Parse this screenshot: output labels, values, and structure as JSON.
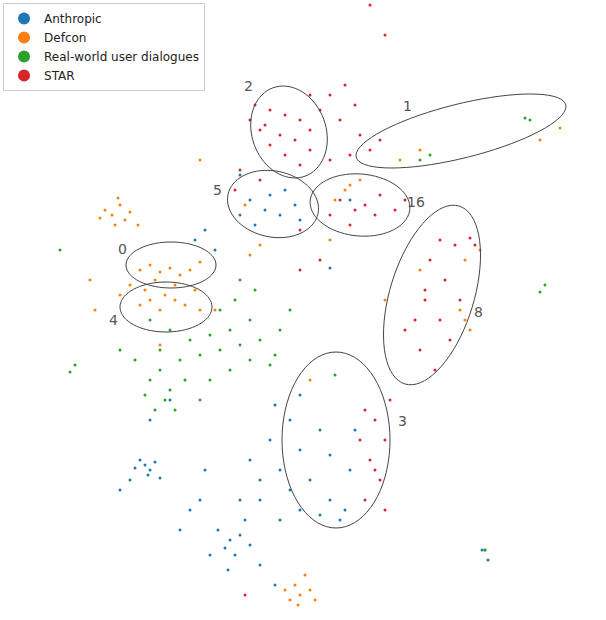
{
  "chart_data": {
    "type": "scatter",
    "xlim": [
      0,
      606
    ],
    "ylim": [
      0,
      620
    ],
    "tick_labels": false,
    "grid": false,
    "legend": "upper left",
    "marker": "circle",
    "series": [
      {
        "name": "Anthropic",
        "color": "#1f77b4",
        "x": [
          145,
          150,
          140,
          155,
          148,
          135,
          160,
          120,
          130,
          230,
          225,
          240,
          218,
          235,
          250,
          210,
          245,
          228,
          260,
          280,
          300,
          320,
          290,
          270,
          250,
          310,
          330,
          340,
          320,
          300,
          290,
          260,
          240,
          350,
          355,
          275,
          300,
          330,
          280,
          200,
          190,
          205,
          180,
          485,
          488,
          482,
          250,
          265,
          280,
          295,
          270,
          255,
          300,
          285,
          240,
          205,
          195,
          215,
          330,
          350,
          240,
          150,
          170,
          345,
          260,
          275
        ],
        "y": [
          155,
          150,
          160,
          158,
          145,
          152,
          142,
          130,
          140,
          80,
          72,
          85,
          90,
          65,
          75,
          65,
          100,
          50,
          120,
          150,
          170,
          190,
          200,
          180,
          160,
          140,
          120,
          100,
          105,
          110,
          130,
          140,
          120,
          150,
          190,
          215,
          225,
          165,
          100,
          120,
          110,
          150,
          90,
          70,
          60,
          70,
          420,
          410,
          405,
          415,
          425,
          395,
          400,
          430,
          405,
          390,
          380,
          370,
          352,
          420,
          445,
          200,
          220,
          110,
          55,
          35
        ]
      },
      {
        "name": "Defcon",
        "color": "#ff7f0e",
        "x": [
          105,
          112,
          120,
          125,
          115,
          130,
          100,
          138,
          118,
          140,
          150,
          160,
          170,
          180,
          190,
          200,
          155,
          145,
          165,
          175,
          185,
          150,
          160,
          140,
          200,
          130,
          120,
          175,
          195,
          295,
          300,
          290,
          305,
          310,
          298,
          285,
          315,
          345,
          350,
          360,
          335,
          465,
          470,
          460,
          465,
          480,
          560,
          540,
          420,
          400,
          330,
          260,
          250,
          215,
          95,
          90,
          310,
          160,
          200,
          245,
          420,
          385
        ],
        "y": [
          410,
          405,
          415,
          400,
          395,
          408,
          402,
          395,
          422,
          350,
          355,
          348,
          352,
          345,
          350,
          358,
          340,
          330,
          325,
          320,
          315,
          320,
          310,
          315,
          310,
          335,
          325,
          335,
          330,
          35,
          25,
          20,
          45,
          30,
          15,
          30,
          20,
          430,
          435,
          440,
          420,
          300,
          290,
          310,
          360,
          370,
          492,
          480,
          470,
          460,
          380,
          375,
          365,
          310,
          310,
          340,
          240,
          275,
          460,
          415,
          350,
          320
        ]
      },
      {
        "name": "Real-world user dialogues",
        "color": "#2ca02c",
        "x": [
          150,
          170,
          190,
          210,
          230,
          250,
          160,
          180,
          200,
          220,
          240,
          260,
          280,
          150,
          170,
          165,
          155,
          175,
          185,
          210,
          230,
          250,
          270,
          200,
          145,
          160,
          135,
          120,
          220,
          235,
          255,
          240,
          275,
          290,
          75,
          70,
          530,
          525,
          540,
          545,
          430,
          420,
          485,
          335,
          60
        ],
        "y": [
          300,
          290,
          280,
          285,
          290,
          300,
          270,
          260,
          265,
          270,
          275,
          280,
          290,
          240,
          230,
          220,
          210,
          210,
          240,
          240,
          250,
          260,
          255,
          220,
          225,
          250,
          260,
          270,
          310,
          320,
          330,
          340,
          265,
          310,
          255,
          248,
          500,
          502,
          328,
          335,
          465,
          460,
          70,
          245,
          370
        ]
      },
      {
        "name": "STAR",
        "color": "#d62728",
        "x": [
          255,
          270,
          285,
          300,
          265,
          280,
          295,
          310,
          270,
          285,
          300,
          260,
          250,
          310,
          320,
          330,
          345,
          340,
          355,
          360,
          370,
          380,
          350,
          330,
          340,
          355,
          365,
          375,
          350,
          380,
          395,
          405,
          330,
          440,
          455,
          470,
          430,
          445,
          425,
          440,
          460,
          450,
          420,
          435,
          415,
          405,
          475,
          425,
          365,
          375,
          385,
          370,
          380,
          365,
          385,
          375,
          360,
          390,
          370,
          385,
          240,
          235,
          260,
          320,
          300,
          245,
          300,
          310
        ],
        "y": [
          515,
          510,
          505,
          500,
          495,
          485,
          480,
          470,
          475,
          465,
          455,
          490,
          500,
          490,
          510,
          525,
          535,
          500,
          515,
          485,
          470,
          480,
          465,
          460,
          420,
          410,
          415,
          405,
          395,
          425,
          410,
          420,
          405,
          380,
          375,
          382,
          360,
          340,
          320,
          300,
          320,
          280,
          270,
          250,
          300,
          290,
          375,
          330,
          210,
          200,
          180,
          160,
          140,
          120,
          110,
          150,
          180,
          220,
          615,
          585,
          450,
          430,
          440,
          360,
          350,
          25,
          390,
          525
        ]
      }
    ],
    "clusters": [
      {
        "label": "2",
        "cx": 289,
        "cy": 488,
        "rx": 37,
        "ry": 47,
        "tilt": 20,
        "label_x": 248,
        "label_y": 534
      },
      {
        "label": "1",
        "cx": 461,
        "cy": 489,
        "rx": 108,
        "ry": 27,
        "tilt": 14,
        "label_x": 407,
        "label_y": 514
      },
      {
        "label": "5",
        "cx": 273,
        "cy": 416,
        "rx": 46,
        "ry": 33,
        "tilt": -12,
        "label_x": 217,
        "label_y": 430
      },
      {
        "label": "16",
        "cx": 360,
        "cy": 415,
        "rx": 50,
        "ry": 31,
        "tilt": -5,
        "label_x": 416,
        "label_y": 418
      },
      {
        "label": "0",
        "cx": 171,
        "cy": 355,
        "rx": 45,
        "ry": 23,
        "tilt": 0,
        "label_x": 122,
        "label_y": 371
      },
      {
        "label": "4",
        "cx": 166,
        "cy": 313,
        "rx": 46,
        "ry": 25,
        "tilt": 0,
        "label_x": 113,
        "label_y": 300
      },
      {
        "label": "8",
        "cx": 432,
        "cy": 325,
        "rx": 42,
        "ry": 93,
        "tilt": -17,
        "label_x": 478,
        "label_y": 308
      },
      {
        "label": "3",
        "cx": 336,
        "cy": 180,
        "rx": 54,
        "ry": 88,
        "tilt": 0,
        "label_x": 402,
        "label_y": 199
      }
    ]
  }
}
